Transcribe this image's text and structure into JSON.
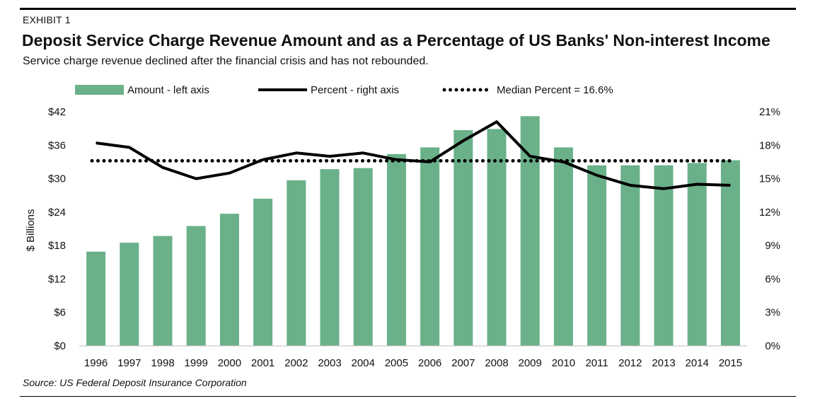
{
  "exhibit_label": "EXHIBIT 1",
  "title": "Deposit Service Charge Revenue Amount and as a Percentage of US Banks' Non-interest Income",
  "subtitle": "Service charge revenue declined after the financial crisis and has not rebounded.",
  "source": "Source: US Federal Deposit Insurance Corporation",
  "colors": {
    "bar": "#6ab18a",
    "line": "#000000",
    "median": "#000000"
  },
  "chart_data": {
    "type": "bar",
    "categories": [
      "1996",
      "1997",
      "1998",
      "1999",
      "2000",
      "2001",
      "2002",
      "2003",
      "2004",
      "2005",
      "2006",
      "2007",
      "2008",
      "2009",
      "2010",
      "2011",
      "2012",
      "2013",
      "2014",
      "2015"
    ],
    "series": [
      {
        "name": "Amount - left axis",
        "type": "bar",
        "axis": "left",
        "values": [
          16.9,
          18.5,
          19.7,
          21.5,
          23.7,
          26.4,
          29.7,
          31.7,
          31.9,
          34.4,
          35.6,
          38.7,
          38.9,
          41.2,
          35.6,
          32.4,
          32.4,
          32.4,
          32.8,
          33.3
        ]
      },
      {
        "name": "Percent - right axis",
        "type": "line",
        "axis": "right",
        "values": [
          18.2,
          17.8,
          16.0,
          15.0,
          15.5,
          16.7,
          17.3,
          17.0,
          17.3,
          16.7,
          16.5,
          18.4,
          20.1,
          17.0,
          16.5,
          15.3,
          14.4,
          14.1,
          14.5,
          14.4
        ]
      },
      {
        "name": "Median Percent = 16.6%",
        "type": "reference-line",
        "axis": "right",
        "value": 16.6
      }
    ],
    "ylabel": "$ Billions",
    "ylim": [
      0,
      42
    ],
    "yticks": [
      "$0",
      "$6",
      "$12",
      "$18",
      "$24",
      "$30",
      "$36",
      "$42"
    ],
    "y2lim": [
      0,
      21
    ],
    "y2ticks": [
      "0%",
      "3%",
      "6%",
      "9%",
      "12%",
      "15%",
      "18%",
      "21%"
    ],
    "grid": false,
    "legend_position": "top"
  }
}
